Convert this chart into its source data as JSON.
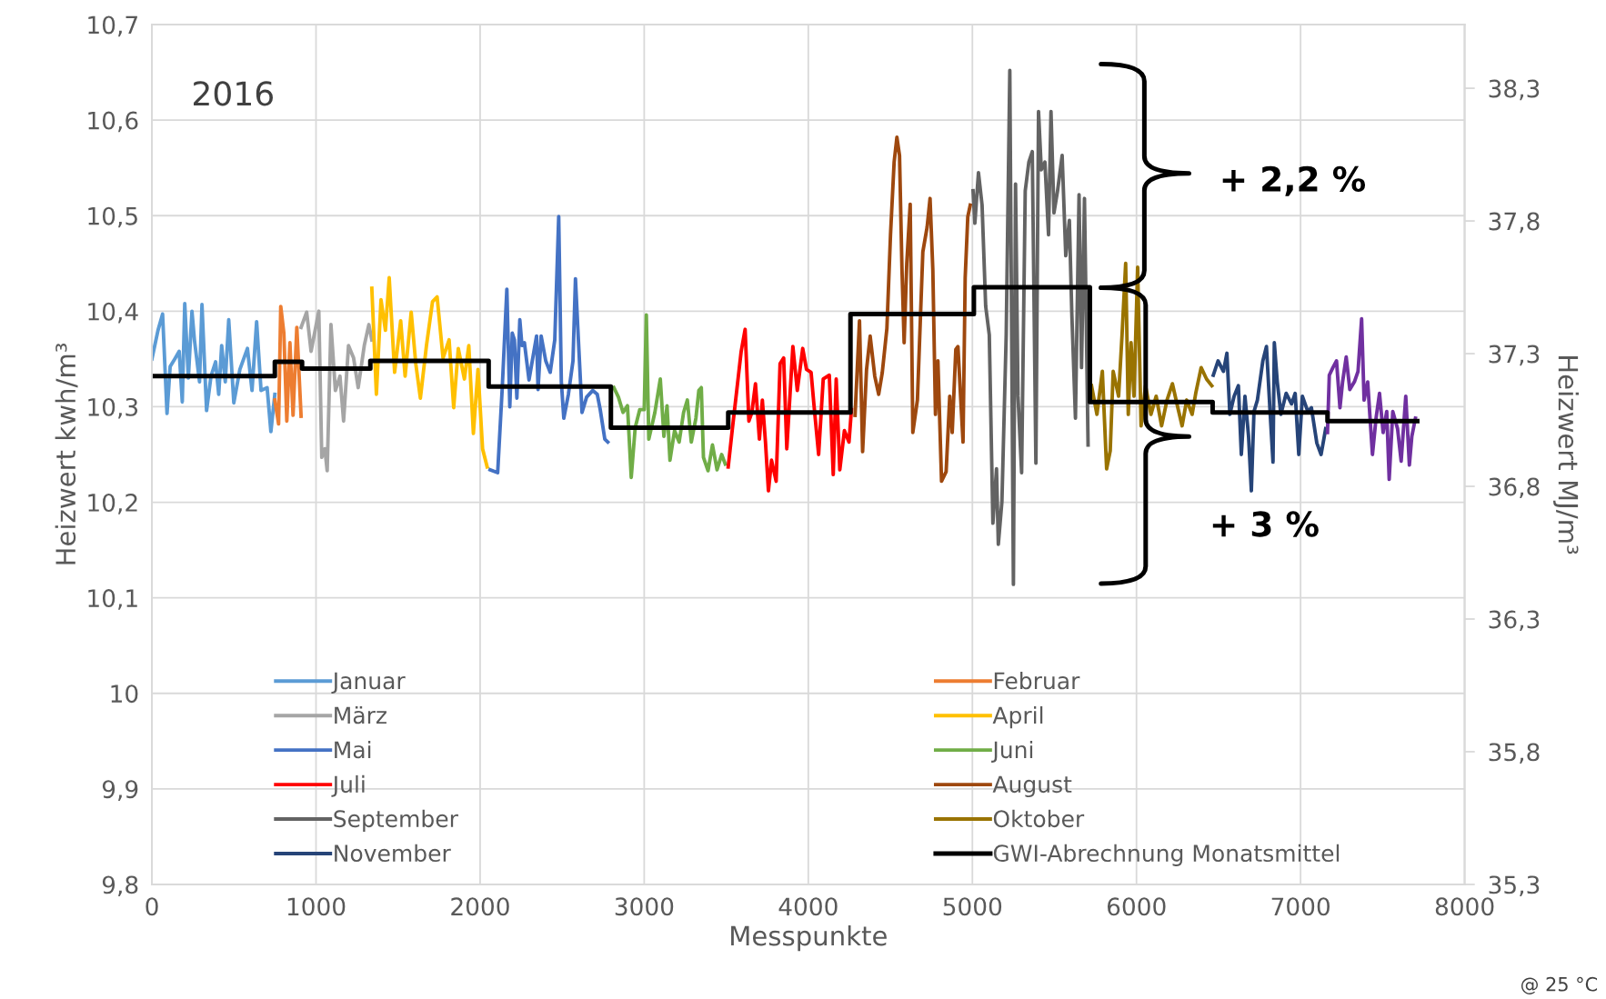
{
  "chart_data": {
    "type": "line",
    "xlabel": "Messpunkte",
    "ylabel": "Heizwert kwh/m³",
    "y2label": "Heizwert MJ/m³",
    "xlim": [
      0,
      8000
    ],
    "xticks": [
      0,
      1000,
      2000,
      3000,
      4000,
      5000,
      6000,
      7000,
      8000
    ],
    "ylim": [
      9.8,
      10.7
    ],
    "yticks": [
      {
        "value": 9.8,
        "label": "9,8"
      },
      {
        "value": 9.9,
        "label": "9,9"
      },
      {
        "value": 10,
        "label": "10"
      },
      {
        "value": 10.1,
        "label": "10,1"
      },
      {
        "value": 10.2,
        "label": "10,2"
      },
      {
        "value": 10.3,
        "label": "10,3"
      },
      {
        "value": 10.4,
        "label": "10,4"
      },
      {
        "value": 10.5,
        "label": "10,5"
      },
      {
        "value": 10.6,
        "label": "10,6"
      },
      {
        "value": 10.7,
        "label": "10,7"
      }
    ],
    "y2lim": [
      35.3,
      38.54
    ],
    "y2ticks": [
      {
        "value": 35.3,
        "label": "35,3"
      },
      {
        "value": 35.8,
        "label": "35,8"
      },
      {
        "value": 36.3,
        "label": "36,3"
      },
      {
        "value": 36.8,
        "label": "36,8"
      },
      {
        "value": 37.3,
        "label": "37,3"
      },
      {
        "value": 37.8,
        "label": "37,8"
      },
      {
        "value": 38.3,
        "label": "38,3"
      }
    ],
    "grid": true,
    "legend": "bottom",
    "annotations": [
      "2016",
      "+ 2,2 %",
      "+ 3 %",
      "@ 25 °C"
    ],
    "series": [
      {
        "name": "Januar",
        "color": "#5b9bd5",
        "x": [
          0,
          37,
          65,
          92,
          111,
          139,
          166,
          185,
          200,
          222,
          244,
          259,
          290,
          305,
          333,
          360,
          388,
          407,
          425,
          447,
          468,
          499,
          536,
          582,
          610,
          638,
          665,
          702,
          725,
          749
        ],
        "values": [
          10.35,
          10.38,
          10.397,
          10.293,
          10.342,
          10.35,
          10.358,
          10.305,
          10.408,
          10.33,
          10.4,
          10.37,
          10.326,
          10.407,
          10.296,
          10.332,
          10.347,
          10.313,
          10.364,
          10.326,
          10.391,
          10.304,
          10.339,
          10.361,
          10.317,
          10.389,
          10.317,
          10.32,
          10.274,
          10.313
        ]
      },
      {
        "name": "Februar",
        "color": "#ed7d31",
        "x": [
          749,
          772,
          785,
          804,
          822,
          841,
          860,
          883,
          909
        ],
        "values": [
          10.307,
          10.282,
          10.405,
          10.377,
          10.285,
          10.367,
          10.291,
          10.383,
          10.29
        ]
      },
      {
        "name": "März",
        "color": "#a5a5a5",
        "x": [
          909,
          943,
          970,
          1017,
          1035,
          1054,
          1068,
          1091,
          1118,
          1146,
          1168,
          1198,
          1229,
          1257,
          1294,
          1322,
          1340
        ],
        "values": [
          10.383,
          10.399,
          10.358,
          10.4,
          10.247,
          10.256,
          10.233,
          10.386,
          10.317,
          10.332,
          10.285,
          10.364,
          10.351,
          10.32,
          10.364,
          10.386,
          10.37
        ]
      },
      {
        "name": "April",
        "color": "#ffc000",
        "x": [
          1340,
          1368,
          1396,
          1423,
          1446,
          1479,
          1516,
          1543,
          1580,
          1608,
          1636,
          1673,
          1710,
          1738,
          1774,
          1811,
          1839,
          1867,
          1904,
          1931,
          1959,
          1987,
          2015,
          2043
        ],
        "values": [
          10.424,
          10.313,
          10.412,
          10.38,
          10.435,
          10.336,
          10.39,
          10.332,
          10.399,
          10.345,
          10.309,
          10.364,
          10.41,
          10.415,
          10.351,
          10.37,
          10.299,
          10.361,
          10.329,
          10.364,
          10.272,
          10.339,
          10.256,
          10.237
        ]
      },
      {
        "name": "Mai",
        "color": "#4472c4",
        "x": [
          2061,
          2107,
          2135,
          2163,
          2181,
          2196,
          2209,
          2224,
          2242,
          2255,
          2270,
          2298,
          2344,
          2353,
          2372,
          2400,
          2427,
          2455,
          2479,
          2495,
          2510,
          2538,
          2566,
          2581,
          2599,
          2621,
          2649,
          2686,
          2714,
          2732,
          2760,
          2778
        ],
        "values": [
          10.234,
          10.231,
          10.32,
          10.423,
          10.3,
          10.377,
          10.37,
          10.309,
          10.391,
          10.364,
          10.367,
          10.328,
          10.374,
          10.318,
          10.374,
          10.348,
          10.336,
          10.37,
          10.499,
          10.326,
          10.288,
          10.313,
          10.348,
          10.434,
          10.37,
          10.294,
          10.31,
          10.317,
          10.313,
          10.297,
          10.266,
          10.263
        ]
      },
      {
        "name": "Juni",
        "color": "#70ad47",
        "x": [
          2815,
          2843,
          2871,
          2898,
          2921,
          2945,
          2973,
          3000,
          3013,
          3028,
          3065,
          3098,
          3120,
          3139,
          3157,
          3185,
          3213,
          3240,
          3263,
          3287,
          3315,
          3333,
          3348,
          3361,
          3389,
          3416,
          3444,
          3472,
          3494
        ],
        "values": [
          10.32,
          10.31,
          10.294,
          10.301,
          10.226,
          10.278,
          10.297,
          10.297,
          10.396,
          10.266,
          10.294,
          10.329,
          10.269,
          10.301,
          10.244,
          10.275,
          10.263,
          10.294,
          10.307,
          10.263,
          10.288,
          10.317,
          10.32,
          10.247,
          10.233,
          10.26,
          10.234,
          10.25,
          10.24
        ]
      },
      {
        "name": "Juli",
        "color": "#ff0000",
        "x": [
          3512,
          3536,
          3564,
          3591,
          3615,
          3638,
          3656,
          3678,
          3702,
          3720,
          3739,
          3757,
          3776,
          3804,
          3828,
          3850,
          3869,
          3906,
          3933,
          3966,
          3989,
          4017,
          4035,
          4063,
          4091,
          4128,
          4152,
          4170,
          4192,
          4220,
          4248,
          4263
        ],
        "values": [
          10.237,
          10.275,
          10.317,
          10.358,
          10.381,
          10.285,
          10.294,
          10.324,
          10.266,
          10.307,
          10.263,
          10.212,
          10.244,
          10.222,
          10.345,
          10.351,
          10.256,
          10.363,
          10.317,
          10.361,
          10.339,
          10.336,
          10.301,
          10.25,
          10.329,
          10.333,
          10.229,
          10.329,
          10.234,
          10.275,
          10.263,
          10.297
        ]
      },
      {
        "name": "August",
        "color": "#9e480e",
        "x": [
          4285,
          4312,
          4331,
          4355,
          4377,
          4405,
          4429,
          4451,
          4479,
          4501,
          4523,
          4540,
          4556,
          4571,
          4584,
          4600,
          4621,
          4637,
          4665,
          4698,
          4724,
          4742,
          4759,
          4775,
          4790,
          4812,
          4840,
          4862,
          4877,
          4899,
          4912,
          4928,
          4943,
          4956,
          4972,
          4987
        ],
        "values": [
          10.291,
          10.39,
          10.253,
          10.339,
          10.374,
          10.332,
          10.313,
          10.336,
          10.382,
          10.48,
          10.556,
          10.582,
          10.563,
          10.443,
          10.367,
          10.45,
          10.512,
          10.273,
          10.307,
          10.462,
          10.488,
          10.518,
          10.443,
          10.292,
          10.348,
          10.222,
          10.232,
          10.311,
          10.273,
          10.36,
          10.363,
          10.311,
          10.263,
          10.435,
          10.499,
          10.511
        ]
      },
      {
        "name": "September",
        "color": "#636363",
        "x": [
          5004,
          5015,
          5037,
          5059,
          5081,
          5103,
          5125,
          5147,
          5158,
          5180,
          5206,
          5228,
          5250,
          5263,
          5278,
          5300,
          5322,
          5344,
          5365,
          5387,
          5403,
          5420,
          5442,
          5464,
          5479,
          5497,
          5519,
          5547,
          5569,
          5591,
          5606,
          5628,
          5650,
          5665,
          5683,
          5705
        ],
        "values": [
          10.526,
          10.492,
          10.545,
          10.511,
          10.405,
          10.375,
          10.178,
          10.235,
          10.156,
          10.201,
          10.375,
          10.652,
          10.114,
          10.533,
          10.311,
          10.231,
          10.526,
          10.556,
          10.567,
          10.241,
          10.609,
          10.548,
          10.556,
          10.48,
          10.609,
          10.503,
          10.526,
          10.563,
          10.458,
          10.495,
          10.397,
          10.288,
          10.522,
          10.341,
          10.518,
          10.26
        ]
      },
      {
        "name": "Oktober",
        "color": "#997300",
        "x": [
          5726,
          5759,
          5792,
          5818,
          5840,
          5858,
          5891,
          5912,
          5934,
          5950,
          5967,
          5985,
          6007,
          6028,
          6055,
          6088,
          6120,
          6153,
          6186,
          6219,
          6252,
          6278,
          6306,
          6339,
          6361,
          6394,
          6427,
          6459
        ],
        "values": [
          10.322,
          10.292,
          10.337,
          10.235,
          10.254,
          10.337,
          10.311,
          10.375,
          10.45,
          10.292,
          10.367,
          10.311,
          10.446,
          10.28,
          10.322,
          10.292,
          10.311,
          10.28,
          10.307,
          10.324,
          10.299,
          10.28,
          10.307,
          10.292,
          10.314,
          10.341,
          10.329,
          10.322
        ]
      },
      {
        "name": "November",
        "color": "#264478",
        "x": [
          6468,
          6497,
          6530,
          6551,
          6569,
          6595,
          6621,
          6639,
          6661,
          6683,
          6700,
          6716,
          6737,
          6770,
          6792,
          6814,
          6832,
          6840,
          6858,
          6880,
          6912,
          6945,
          6967,
          6989,
          7011,
          7044,
          7066,
          7099,
          7125,
          7153
        ],
        "values": [
          10.333,
          10.348,
          10.337,
          10.356,
          10.292,
          10.311,
          10.322,
          10.25,
          10.311,
          10.269,
          10.212,
          10.295,
          10.307,
          10.348,
          10.363,
          10.295,
          10.242,
          10.367,
          10.326,
          10.292,
          10.314,
          10.303,
          10.314,
          10.25,
          10.311,
          10.295,
          10.299,
          10.262,
          10.25,
          10.277
        ]
      },
      {
        "color": "#7030a0",
        "x": [
          7164,
          7175,
          7197,
          7219,
          7240,
          7256,
          7278,
          7300,
          7328,
          7350,
          7372,
          7387,
          7409,
          7438,
          7460,
          7481,
          7503,
          7525,
          7540,
          7562,
          7591,
          7613,
          7641,
          7663,
          7678,
          7700
        ],
        "values": [
          10.273,
          10.333,
          10.341,
          10.348,
          10.299,
          10.326,
          10.352,
          10.318,
          10.326,
          10.337,
          10.392,
          10.307,
          10.326,
          10.25,
          10.288,
          10.314,
          10.273,
          10.295,
          10.224,
          10.295,
          10.277,
          10.243,
          10.311,
          10.239,
          10.269,
          10.288
        ]
      },
      {
        "name": "GWI-Abrechnung Monatsmittel",
        "type": "step",
        "color": "#000000",
        "x": [
          0,
          749,
          915,
          1331,
          2052,
          2797,
          3512,
          4257,
          5009,
          5716,
          6464,
          7164,
          7711
        ],
        "values": [
          10.332,
          10.347,
          10.34,
          10.348,
          10.321,
          10.278,
          10.294,
          10.397,
          10.425,
          10.305,
          10.294,
          10.285,
          10.285
        ]
      }
    ]
  }
}
